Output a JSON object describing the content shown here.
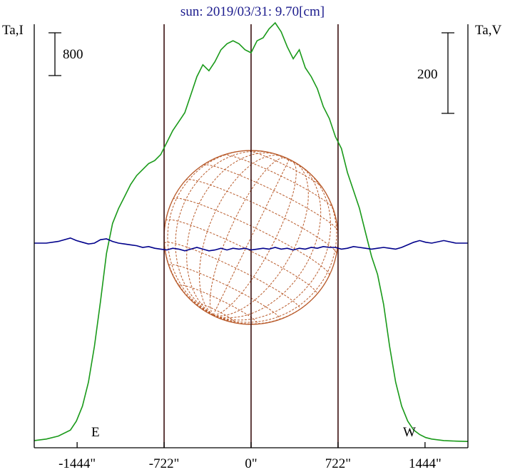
{
  "chart_data": {
    "type": "line",
    "title": "sun: 2019/03/31: 9.70[cm]",
    "ylabel_left": "Ta,I",
    "ylabel_right": "Ta,V",
    "scale_left": "800",
    "scale_right": "200",
    "east_label": "E",
    "west_label": "W",
    "xlim": [
      -1800,
      1800
    ],
    "x_ticks": [
      -1444,
      -722,
      0,
      722,
      1444
    ],
    "x_tick_labels": [
      "-1444\"",
      "-722\"",
      "0\"",
      "722\"",
      "1444\""
    ],
    "limb_markers": [
      -722,
      0,
      722
    ],
    "series": [
      {
        "color": "#1a9a1a",
        "x": [
          -1800,
          -1700,
          -1600,
          -1500,
          -1450,
          -1400,
          -1350,
          -1300,
          -1250,
          -1200,
          -1150,
          -1100,
          -1050,
          -1000,
          -950,
          -900,
          -850,
          -800,
          -750,
          -700,
          -650,
          -600,
          -550,
          -500,
          -450,
          -400,
          -350,
          -300,
          -250,
          -200,
          -150,
          -100,
          -50,
          0,
          50,
          100,
          150,
          200,
          250,
          300,
          350,
          400,
          450,
          500,
          550,
          600,
          650,
          700,
          750,
          800,
          850,
          900,
          950,
          1000,
          1050,
          1100,
          1150,
          1200,
          1250,
          1300,
          1350,
          1400,
          1450,
          1500,
          1600,
          1700,
          1800
        ],
        "y": [
          0.005,
          0.01,
          0.02,
          0.04,
          0.07,
          0.12,
          0.2,
          0.32,
          0.47,
          0.63,
          0.73,
          0.78,
          0.82,
          0.86,
          0.89,
          0.91,
          0.93,
          0.94,
          0.96,
          1.0,
          1.04,
          1.07,
          1.1,
          1.16,
          1.22,
          1.26,
          1.24,
          1.27,
          1.31,
          1.33,
          1.34,
          1.33,
          1.31,
          1.3,
          1.34,
          1.35,
          1.38,
          1.4,
          1.37,
          1.32,
          1.28,
          1.31,
          1.25,
          1.22,
          1.18,
          1.12,
          1.08,
          1.02,
          0.98,
          0.9,
          0.84,
          0.78,
          0.7,
          0.62,
          0.56,
          0.46,
          0.32,
          0.2,
          0.12,
          0.07,
          0.04,
          0.025,
          0.015,
          0.01,
          0.005,
          0.003,
          0.002
        ]
      },
      {
        "color": "#00008b",
        "x": [
          -1800,
          -1700,
          -1600,
          -1500,
          -1450,
          -1400,
          -1350,
          -1300,
          -1250,
          -1200,
          -1150,
          -1100,
          -1050,
          -1000,
          -950,
          -900,
          -850,
          -800,
          -750,
          -700,
          -650,
          -600,
          -550,
          -500,
          -450,
          -400,
          -350,
          -300,
          -250,
          -200,
          -150,
          -100,
          -50,
          0,
          50,
          100,
          150,
          200,
          250,
          300,
          350,
          400,
          450,
          500,
          550,
          600,
          650,
          700,
          750,
          800,
          850,
          900,
          950,
          1000,
          1050,
          1100,
          1150,
          1200,
          1250,
          1300,
          1350,
          1400,
          1450,
          1500,
          1600,
          1700,
          1800
        ],
        "y": [
          0.0,
          0.0,
          0.02,
          0.06,
          0.03,
          0.01,
          -0.01,
          0.0,
          0.04,
          0.05,
          0.02,
          0.0,
          -0.01,
          -0.02,
          -0.03,
          -0.05,
          -0.04,
          -0.06,
          -0.07,
          -0.08,
          -0.06,
          -0.07,
          -0.09,
          -0.07,
          -0.05,
          -0.07,
          -0.09,
          -0.08,
          -0.06,
          -0.08,
          -0.06,
          -0.07,
          -0.06,
          -0.08,
          -0.07,
          -0.06,
          -0.07,
          -0.05,
          -0.07,
          -0.06,
          -0.08,
          -0.06,
          -0.07,
          -0.05,
          -0.06,
          -0.04,
          -0.05,
          -0.05,
          -0.07,
          -0.06,
          -0.04,
          -0.05,
          -0.06,
          -0.07,
          -0.06,
          -0.05,
          -0.06,
          -0.07,
          -0.05,
          -0.02,
          0.01,
          0.03,
          0.01,
          0.0,
          0.03,
          0.0,
          0.0
        ]
      }
    ],
    "colors": {
      "axis": "#000000",
      "limb_lines": "#3a1010",
      "disk": "#b85a2a",
      "title": "#1a1a8c"
    }
  }
}
